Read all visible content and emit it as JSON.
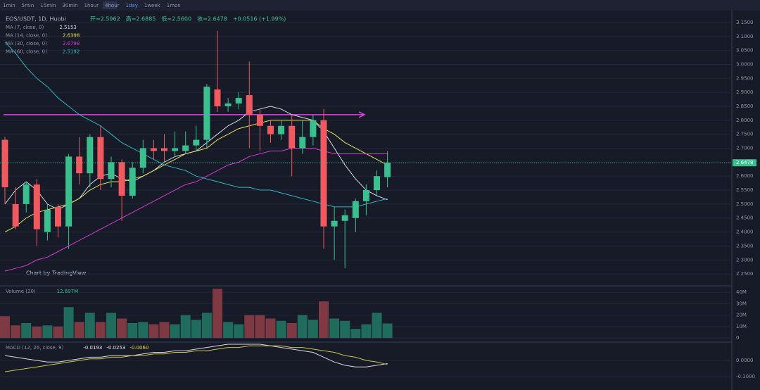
{
  "toolbar": [
    "1min",
    "5min",
    "15min",
    "30min",
    "1hour",
    "4hour",
    "1day",
    "1week",
    "1mon"
  ],
  "chart_data": {
    "type": "candlestick",
    "title": "EOS/USDT, 1D, Huobi",
    "header_ohlc": [
      "开=2.5962",
      "高=2.6885",
      "低=2.5600",
      "收=2.6478"
    ],
    "change": "+0.0516 (+1.99%)",
    "watermark": "Chart by TradingView",
    "up_color": "#3ac08f",
    "down_color": "#f0595f",
    "open": [
      2.73,
      2.5,
      2.5,
      2.57,
      2.4,
      2.49,
      2.42,
      2.67,
      2.61,
      2.74,
      2.59,
      2.65,
      2.53,
      2.63,
      2.7,
      2.7,
      2.69,
      2.69,
      2.71,
      2.73,
      2.91,
      2.85,
      2.86,
      2.89,
      2.82,
      2.78,
      2.75,
      2.78,
      2.7,
      2.74,
      2.8,
      2.42,
      2.44,
      2.45,
      2.51,
      2.55,
      2.5962
    ],
    "high": [
      2.74,
      2.56,
      2.58,
      2.59,
      2.5,
      2.5,
      2.68,
      2.74,
      2.75,
      2.78,
      2.67,
      2.66,
      2.65,
      2.73,
      2.73,
      2.75,
      2.76,
      2.76,
      2.78,
      2.93,
      3.12,
      2.88,
      2.9,
      3.01,
      2.84,
      2.8,
      2.8,
      2.82,
      2.8,
      2.82,
      2.84,
      2.49,
      2.48,
      2.52,
      2.57,
      2.62,
      2.6885
    ],
    "low": [
      2.5,
      2.41,
      2.47,
      2.35,
      2.37,
      2.38,
      2.34,
      2.57,
      2.56,
      2.55,
      2.56,
      2.44,
      2.52,
      2.61,
      2.66,
      2.65,
      2.67,
      2.68,
      2.69,
      2.7,
      2.83,
      2.83,
      2.84,
      2.7,
      2.69,
      2.72,
      2.73,
      2.6,
      2.68,
      2.71,
      2.34,
      2.3,
      2.27,
      2.4,
      2.46,
      2.53,
      2.56
    ],
    "close": [
      2.56,
      2.42,
      2.57,
      2.41,
      2.48,
      2.42,
      2.67,
      2.61,
      2.74,
      2.59,
      2.65,
      2.53,
      2.63,
      2.7,
      2.69,
      2.69,
      2.7,
      2.71,
      2.73,
      2.92,
      2.85,
      2.86,
      2.88,
      2.82,
      2.78,
      2.75,
      2.78,
      2.7,
      2.74,
      2.8,
      2.42,
      2.44,
      2.46,
      2.51,
      2.55,
      2.6,
      2.6478
    ],
    "ylim": [
      2.21,
      3.18
    ],
    "yticks": [
      {
        "value": 3.15,
        "label": "3.1500"
      },
      {
        "value": 3.1,
        "label": "3.1000"
      },
      {
        "value": 3.05,
        "label": "3.0500"
      },
      {
        "value": 3.0,
        "label": "3.0000"
      },
      {
        "value": 2.95,
        "label": "2.9500"
      },
      {
        "value": 2.9,
        "label": "2.9000"
      },
      {
        "value": 2.85,
        "label": "2.8500"
      },
      {
        "value": 2.8,
        "label": "2.8000"
      },
      {
        "value": 2.75,
        "label": "2.7500"
      },
      {
        "value": 2.7,
        "label": "2.7000"
      },
      {
        "value": 2.65,
        "label": "2.6500"
      },
      {
        "value": 2.6,
        "label": "2.6000"
      },
      {
        "value": 2.55,
        "label": "2.5500"
      },
      {
        "value": 2.5,
        "label": "2.5000"
      },
      {
        "value": 2.45,
        "label": "2.4500"
      },
      {
        "value": 2.4,
        "label": "2.4000"
      },
      {
        "value": 2.35,
        "label": "2.3500"
      },
      {
        "value": 2.3,
        "label": "2.3000"
      },
      {
        "value": 2.25,
        "label": "2.2500"
      }
    ],
    "last_price_label": "2.6478",
    "trendline_price": 2.82,
    "grid": true,
    "series": [
      {
        "name": "MA (7, close, 0)",
        "color": "#d7d7e0",
        "values": [
          2.5,
          2.55,
          2.58,
          2.55,
          2.5,
          2.48,
          2.5,
          2.52,
          2.57,
          2.6,
          2.61,
          2.59,
          2.58,
          2.6,
          2.62,
          2.65,
          2.67,
          2.68,
          2.69,
          2.72,
          2.75,
          2.78,
          2.8,
          2.83,
          2.84,
          2.85,
          2.84,
          2.82,
          2.81,
          2.8,
          2.76,
          2.7,
          2.64,
          2.59,
          2.55,
          2.53,
          2.5153
        ]
      },
      {
        "name": "MA (14, close, 0)",
        "color": "#e3e05a",
        "values": [
          2.4,
          2.42,
          2.45,
          2.47,
          2.48,
          2.49,
          2.5,
          2.52,
          2.55,
          2.57,
          2.58,
          2.58,
          2.59,
          2.6,
          2.62,
          2.64,
          2.66,
          2.68,
          2.69,
          2.7,
          2.73,
          2.75,
          2.77,
          2.78,
          2.79,
          2.8,
          2.8,
          2.8,
          2.8,
          2.8,
          2.77,
          2.75,
          2.72,
          2.7,
          2.68,
          2.66,
          2.6398
        ]
      },
      {
        "name": "MA (30, close, 0)",
        "color": "#d63ad6",
        "values": [
          2.26,
          2.27,
          2.28,
          2.3,
          2.31,
          2.33,
          2.35,
          2.37,
          2.39,
          2.41,
          2.43,
          2.45,
          2.47,
          2.49,
          2.51,
          2.53,
          2.55,
          2.57,
          2.58,
          2.6,
          2.62,
          2.64,
          2.65,
          2.67,
          2.68,
          2.69,
          2.69,
          2.7,
          2.7,
          2.7,
          2.69,
          2.68,
          2.68,
          2.68,
          2.68,
          2.68,
          2.6798
        ]
      },
      {
        "name": "MA (60, close, 0)",
        "color": "#2bb5c0",
        "values": [
          3.08,
          3.04,
          2.99,
          2.95,
          2.92,
          2.88,
          2.85,
          2.82,
          2.8,
          2.78,
          2.75,
          2.72,
          2.7,
          2.68,
          2.66,
          2.64,
          2.63,
          2.62,
          2.6,
          2.59,
          2.58,
          2.57,
          2.56,
          2.56,
          2.55,
          2.55,
          2.54,
          2.53,
          2.52,
          2.51,
          2.5,
          2.49,
          2.49,
          2.49,
          2.5,
          2.51,
          2.5192
        ]
      }
    ],
    "volume": {
      "name": "Volume (20)",
      "value_label": "12.697M",
      "up_color": "#1f6b5c",
      "down_color": "#7f3943",
      "values": [
        19000000,
        11000000,
        13000000,
        10000000,
        11000000,
        10000000,
        27000000,
        14000000,
        22000000,
        14000000,
        22000000,
        17000000,
        13000000,
        14000000,
        12000000,
        14000000,
        12000000,
        20000000,
        16000000,
        22000000,
        43000000,
        14000000,
        12000000,
        20000000,
        20000000,
        17000000,
        15000000,
        13000000,
        20000000,
        16000000,
        32000000,
        17000000,
        15000000,
        8000000,
        12000000,
        22000000,
        12697000
      ],
      "ylim": [
        -3000000,
        45000000
      ],
      "yticks": [
        {
          "value": 40000000,
          "label": "40M"
        },
        {
          "value": 30000000,
          "label": "30M"
        },
        {
          "value": 20000000,
          "label": "20M"
        },
        {
          "value": 10000000,
          "label": "10M"
        },
        0
      ]
    },
    "macd": {
      "name": "MACD (12, 26, close, 9)",
      "header_values": [
        "-0.0193",
        "-0.0253",
        "-0.0060"
      ],
      "ylim": [
        -0.1435,
        0.1087
      ],
      "yticks": [
        {
          "value": 0,
          "label": "0.0000"
        },
        {
          "value": -0.1,
          "label": "-0.1000"
        }
      ],
      "series": [
        {
          "color": "#d7d7e0",
          "values": [
            0.03,
            0.02,
            0.01,
            0.0,
            -0.01,
            -0.01,
            0.0,
            0.01,
            0.02,
            0.02,
            0.03,
            0.03,
            0.03,
            0.04,
            0.05,
            0.05,
            0.06,
            0.06,
            0.07,
            0.08,
            0.09,
            0.1,
            0.1,
            0.1,
            0.1,
            0.09,
            0.08,
            0.07,
            0.06,
            0.05,
            0.02,
            -0.01,
            -0.03,
            -0.04,
            -0.04,
            -0.03,
            -0.0193
          ]
        },
        {
          "color": "#c9c64a",
          "values": [
            -0.07,
            -0.06,
            -0.05,
            -0.04,
            -0.03,
            -0.02,
            -0.01,
            0.0,
            0.01,
            0.01,
            0.02,
            0.02,
            0.03,
            0.03,
            0.04,
            0.04,
            0.05,
            0.05,
            0.06,
            0.06,
            0.07,
            0.08,
            0.08,
            0.09,
            0.09,
            0.09,
            0.09,
            0.08,
            0.08,
            0.07,
            0.06,
            0.05,
            0.03,
            0.02,
            0.0,
            -0.01,
            -0.0253
          ]
        }
      ]
    }
  }
}
